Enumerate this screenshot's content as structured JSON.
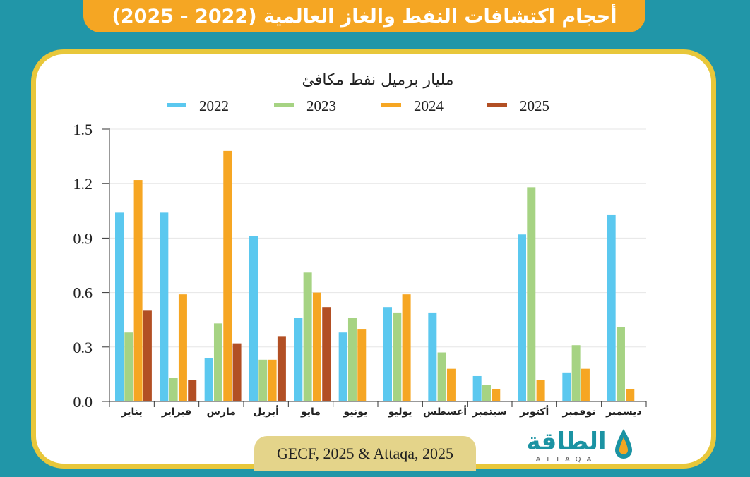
{
  "banner": {
    "title": "أحجام اكتشافات النفط والغاز العالمية (2022 - 2025)"
  },
  "source": "GECF, 2025 & Attaqa, 2025",
  "logo": {
    "name": "الطاقة",
    "sub": "ATTAQA"
  },
  "colors": {
    "2022": "#5bc8ef",
    "2023": "#a6d383",
    "2024": "#f6a623",
    "2025": "#b24f24",
    "background": "#2196a8",
    "banner": "#f5a623",
    "card_border": "#e8c73a"
  },
  "chart_data": {
    "type": "bar",
    "title": "مليار برميل نفط مكافئ",
    "categories": [
      "يناير",
      "فبراير",
      "مارس",
      "أبريل",
      "مايو",
      "يونيو",
      "يوليو",
      "أغسطس",
      "سبتمبر",
      "أكتوبر",
      "نوفمبر",
      "ديسمبر"
    ],
    "series": [
      {
        "name": "2022",
        "values": [
          1.04,
          1.04,
          0.24,
          0.91,
          0.46,
          0.38,
          0.52,
          0.49,
          0.14,
          0.92,
          0.16,
          1.03
        ]
      },
      {
        "name": "2023",
        "values": [
          0.38,
          0.13,
          0.43,
          0.23,
          0.71,
          0.46,
          0.49,
          0.27,
          0.09,
          1.18,
          0.31,
          0.41
        ]
      },
      {
        "name": "2024",
        "values": [
          1.22,
          0.59,
          1.38,
          0.23,
          0.6,
          0.4,
          0.59,
          0.18,
          0.07,
          0.12,
          0.18,
          0.07
        ]
      },
      {
        "name": "2025",
        "values": [
          0.5,
          0.12,
          0.32,
          0.36,
          0.52,
          null,
          null,
          null,
          null,
          null,
          null,
          null
        ]
      }
    ],
    "ylim": [
      0,
      1.5
    ],
    "yticks": [
      "0.0",
      "0.3",
      "0.6",
      "0.9",
      "1.2",
      "1.5"
    ],
    "grid": true,
    "legend": "top"
  }
}
